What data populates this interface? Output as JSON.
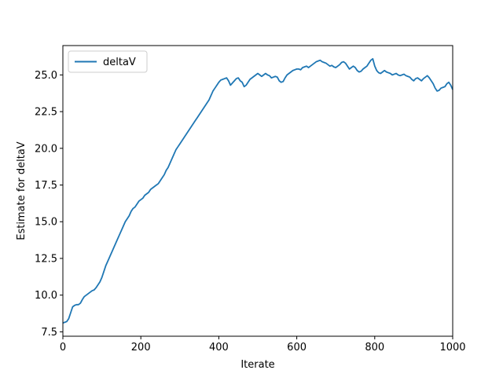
{
  "chart_data": {
    "type": "line",
    "title": "",
    "xlabel": "Iterate",
    "ylabel": "Estimate for deltaV",
    "xlim": [
      0,
      1000
    ],
    "ylim": [
      7.2,
      27.0
    ],
    "xticks": [
      0,
      200,
      400,
      600,
      800,
      1000
    ],
    "xtick_labels": [
      "0",
      "200",
      "400",
      "600",
      "800",
      "1000"
    ],
    "yticks": [
      7.5,
      10.0,
      12.5,
      15.0,
      17.5,
      20.0,
      22.5,
      25.0
    ],
    "ytick_labels": [
      "7.5",
      "10.0",
      "12.5",
      "15.0",
      "17.5",
      "20.0",
      "22.5",
      "25.0"
    ],
    "grid": false,
    "legend": {
      "position": "upper-left",
      "entries": [
        "deltaV"
      ]
    },
    "series": [
      {
        "name": "deltaV",
        "color": "#1f77b4",
        "x": [
          0,
          5,
          10,
          15,
          20,
          25,
          30,
          35,
          40,
          45,
          50,
          55,
          60,
          65,
          70,
          75,
          80,
          85,
          90,
          95,
          100,
          105,
          110,
          115,
          120,
          125,
          130,
          135,
          140,
          145,
          150,
          155,
          160,
          165,
          170,
          175,
          180,
          185,
          190,
          195,
          200,
          205,
          210,
          215,
          220,
          225,
          230,
          235,
          240,
          245,
          250,
          255,
          260,
          265,
          270,
          275,
          280,
          285,
          290,
          295,
          300,
          305,
          310,
          315,
          320,
          325,
          330,
          335,
          340,
          345,
          350,
          355,
          360,
          365,
          370,
          375,
          380,
          385,
          390,
          395,
          400,
          405,
          410,
          415,
          420,
          425,
          430,
          435,
          440,
          445,
          450,
          455,
          460,
          465,
          470,
          475,
          480,
          485,
          490,
          495,
          500,
          505,
          510,
          515,
          520,
          525,
          530,
          535,
          540,
          545,
          550,
          555,
          560,
          565,
          570,
          575,
          580,
          585,
          590,
          595,
          600,
          605,
          610,
          615,
          620,
          625,
          630,
          635,
          640,
          645,
          650,
          655,
          660,
          665,
          670,
          675,
          680,
          685,
          690,
          695,
          700,
          705,
          710,
          715,
          720,
          725,
          730,
          735,
          740,
          745,
          750,
          755,
          760,
          765,
          770,
          775,
          780,
          785,
          790,
          795,
          800,
          805,
          810,
          815,
          820,
          825,
          830,
          835,
          840,
          845,
          850,
          855,
          860,
          865,
          870,
          875,
          880,
          885,
          890,
          895,
          900,
          905,
          910,
          915,
          920,
          925,
          930,
          935,
          940,
          945,
          950,
          955,
          960,
          965,
          970,
          975,
          980,
          985,
          990,
          995,
          1000
        ],
        "y": [
          8.1,
          8.15,
          8.2,
          8.4,
          8.8,
          9.2,
          9.3,
          9.35,
          9.35,
          9.45,
          9.7,
          9.9,
          10.0,
          10.1,
          10.2,
          10.3,
          10.35,
          10.5,
          10.7,
          10.9,
          11.2,
          11.6,
          12.0,
          12.3,
          12.6,
          12.9,
          13.2,
          13.5,
          13.8,
          14.1,
          14.4,
          14.7,
          15.0,
          15.2,
          15.4,
          15.7,
          15.9,
          16.0,
          16.2,
          16.4,
          16.5,
          16.6,
          16.8,
          16.9,
          17.0,
          17.2,
          17.3,
          17.4,
          17.5,
          17.6,
          17.8,
          18.0,
          18.2,
          18.5,
          18.7,
          19.0,
          19.3,
          19.6,
          19.9,
          20.1,
          20.3,
          20.5,
          20.7,
          20.9,
          21.1,
          21.3,
          21.5,
          21.7,
          21.9,
          22.1,
          22.3,
          22.5,
          22.7,
          22.9,
          23.1,
          23.3,
          23.6,
          23.9,
          24.1,
          24.3,
          24.5,
          24.65,
          24.7,
          24.75,
          24.8,
          24.6,
          24.3,
          24.45,
          24.6,
          24.75,
          24.8,
          24.6,
          24.5,
          24.2,
          24.3,
          24.5,
          24.7,
          24.8,
          24.9,
          25.0,
          25.1,
          25.0,
          24.9,
          25.0,
          25.1,
          25.0,
          24.95,
          24.8,
          24.85,
          24.9,
          24.85,
          24.6,
          24.5,
          24.55,
          24.8,
          25.0,
          25.1,
          25.2,
          25.3,
          25.35,
          25.4,
          25.4,
          25.35,
          25.5,
          25.55,
          25.6,
          25.5,
          25.6,
          25.7,
          25.8,
          25.9,
          25.95,
          26.0,
          25.9,
          25.85,
          25.8,
          25.7,
          25.6,
          25.65,
          25.55,
          25.5,
          25.6,
          25.7,
          25.85,
          25.9,
          25.8,
          25.6,
          25.4,
          25.5,
          25.6,
          25.5,
          25.3,
          25.2,
          25.25,
          25.4,
          25.5,
          25.6,
          25.8,
          26.0,
          26.1,
          25.6,
          25.3,
          25.15,
          25.1,
          25.2,
          25.3,
          25.2,
          25.15,
          25.1,
          25.0,
          25.05,
          25.1,
          25.0,
          24.95,
          25.0,
          25.05,
          24.95,
          24.9,
          24.85,
          24.7,
          24.6,
          24.75,
          24.8,
          24.7,
          24.6,
          24.75,
          24.85,
          24.95,
          24.8,
          24.6,
          24.4,
          24.1,
          23.9,
          23.95,
          24.1,
          24.15,
          24.2,
          24.4,
          24.5,
          24.3,
          24.0
        ]
      }
    ]
  }
}
